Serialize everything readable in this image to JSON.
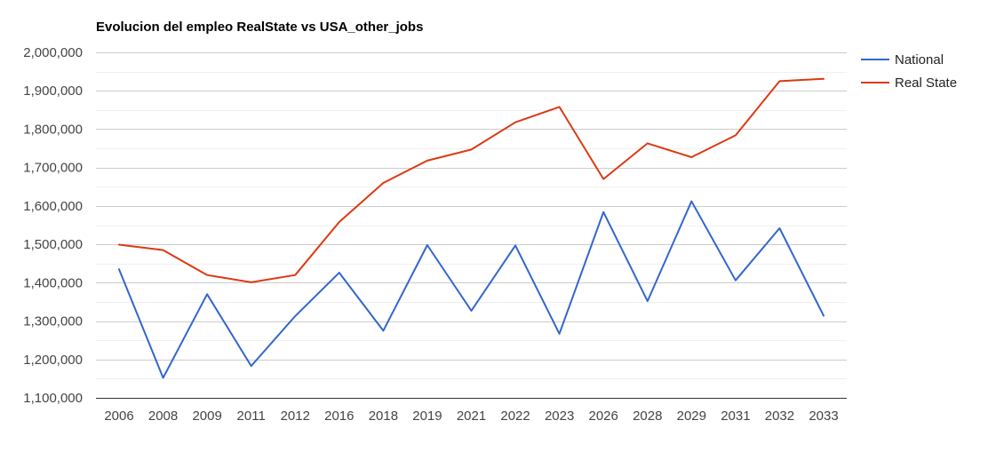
{
  "chart_data": {
    "type": "line",
    "title": "Evolucion del empleo RealState vs USA_other_jobs",
    "xlabel": "",
    "ylabel": "",
    "categories": [
      "2006",
      "2008",
      "2009",
      "2011",
      "2012",
      "2016",
      "2018",
      "2019",
      "2021",
      "2022",
      "2023",
      "2026",
      "2028",
      "2029",
      "2031",
      "2032",
      "2033"
    ],
    "series": [
      {
        "name": "National",
        "color": "#3366cc",
        "values": [
          1435000,
          1152000,
          1370000,
          1183000,
          1313000,
          1426000,
          1275000,
          1498000,
          1327000,
          1497000,
          1267000,
          1584000,
          1352000,
          1612000,
          1406000,
          1542000,
          1314000
        ]
      },
      {
        "name": "Real State",
        "color": "#dc3912",
        "values": [
          1499000,
          1485000,
          1420000,
          1401000,
          1420000,
          1558000,
          1660000,
          1718000,
          1747000,
          1818000,
          1858000,
          1670000,
          1763000,
          1727000,
          1784000,
          1925000,
          1931000
        ]
      }
    ],
    "ylim": [
      1100000,
      2000000
    ],
    "yticks": [
      1100000,
      1200000,
      1300000,
      1400000,
      1500000,
      1600000,
      1700000,
      1800000,
      1900000,
      2000000
    ],
    "ytick_labels": [
      "1,100,000",
      "1,200,000",
      "1,300,000",
      "1,400,000",
      "1,500,000",
      "1,600,000",
      "1,700,000",
      "1,800,000",
      "1,900,000",
      "2,000,000"
    ],
    "grid": true,
    "legend_position": "right"
  }
}
